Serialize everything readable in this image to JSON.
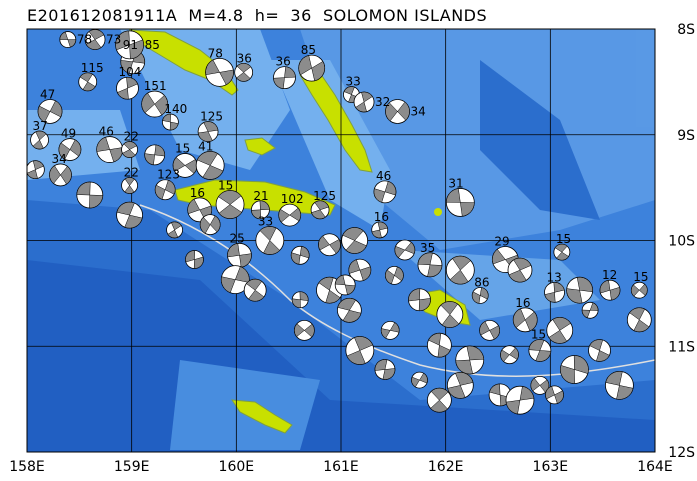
{
  "title": "E201612081911A  M=4.8  h=  36  SOLOMON ISLANDS",
  "map": {
    "lon_range": [
      158,
      164
    ],
    "lat_range": [
      -8,
      -12
    ],
    "lon_ticks": [
      "158E",
      "159E",
      "160E",
      "161E",
      "162E",
      "163E",
      "164E"
    ],
    "lat_ticks": [
      "8S",
      "9S",
      "10S",
      "11S",
      "12S"
    ],
    "colors": {
      "ocean": "#3d82dc",
      "shallow": "#7ab6f0",
      "deep": "#1e5cc0",
      "land": "#c8e000",
      "land_high": "#7fa040",
      "compressional": "#8c8c8c",
      "dilatational": "#ffffff",
      "trench": "#e0e0e0"
    }
  },
  "events": [
    [
      158.39,
      -8.1,
      "78"
    ],
    [
      158.65,
      -8.1,
      "73"
    ],
    [
      159.01,
      -8.31,
      "91"
    ],
    [
      158.98,
      -8.15,
      "85"
    ],
    [
      158.58,
      -8.5,
      "115"
    ],
    [
      158.96,
      -8.56,
      "104"
    ],
    [
      159.22,
      -8.71,
      "151"
    ],
    [
      159.37,
      -8.88,
      "140"
    ],
    [
      159.73,
      -8.97,
      "125"
    ],
    [
      158.22,
      -8.78,
      "47"
    ],
    [
      159.84,
      -8.41,
      "78"
    ],
    [
      160.07,
      -8.41,
      "36"
    ],
    [
      160.46,
      -8.46,
      "36"
    ],
    [
      160.72,
      -8.37,
      "85"
    ],
    [
      161.1,
      -8.62,
      "33"
    ],
    [
      161.22,
      -8.69,
      "32"
    ],
    [
      161.54,
      -8.78,
      "34"
    ],
    [
      162.14,
      -9.64,
      "31"
    ],
    [
      160.8,
      -9.71,
      "125"
    ],
    [
      161.42,
      -9.54,
      "46"
    ],
    [
      162.57,
      -10.18,
      "29"
    ],
    [
      163.11,
      -10.11,
      "15"
    ],
    [
      163.04,
      -10.49,
      "13"
    ],
    [
      162.76,
      -10.75,
      "16"
    ],
    [
      163.66,
      -11.37,
      ""
    ],
    [
      158.12,
      -9.05,
      "37"
    ],
    [
      158.41,
      -9.14,
      "49"
    ],
    [
      158.79,
      -9.14,
      "46"
    ],
    [
      158.98,
      -9.14,
      "22"
    ],
    [
      159.22,
      -9.19,
      ""
    ],
    [
      159.51,
      -9.29,
      "15"
    ],
    [
      159.75,
      -9.29,
      "41"
    ],
    [
      158.08,
      -9.33,
      ""
    ],
    [
      158.32,
      -9.38,
      "34"
    ],
    [
      158.6,
      -9.57,
      ""
    ],
    [
      158.98,
      -9.48,
      "22"
    ],
    [
      159.32,
      -9.52,
      "123"
    ],
    [
      159.65,
      -9.71,
      "16"
    ],
    [
      159.94,
      -9.66,
      "15"
    ],
    [
      160.23,
      -9.71,
      "21"
    ],
    [
      160.51,
      -9.76,
      "102"
    ],
    [
      158.98,
      -9.76,
      ""
    ],
    [
      159.41,
      -9.9,
      ""
    ],
    [
      159.75,
      -9.85,
      ""
    ],
    [
      160.03,
      -10.14,
      "25"
    ],
    [
      160.32,
      -10.0,
      "33"
    ],
    [
      160.61,
      -10.14,
      ""
    ],
    [
      160.89,
      -10.04,
      ""
    ],
    [
      161.13,
      -10.0,
      ""
    ],
    [
      161.37,
      -9.9,
      "16"
    ],
    [
      161.61,
      -10.09,
      ""
    ],
    [
      161.85,
      -10.23,
      "35"
    ],
    [
      162.14,
      -10.28,
      ""
    ],
    [
      161.51,
      -10.33,
      ""
    ],
    [
      161.18,
      -10.28,
      ""
    ],
    [
      160.89,
      -10.47,
      ""
    ],
    [
      160.61,
      -10.56,
      ""
    ],
    [
      160.65,
      -10.85,
      ""
    ],
    [
      161.08,
      -10.66,
      ""
    ],
    [
      161.18,
      -11.04,
      ""
    ],
    [
      161.47,
      -10.85,
      ""
    ],
    [
      161.75,
      -10.56,
      ""
    ],
    [
      162.04,
      -10.7,
      ""
    ],
    [
      162.33,
      -10.52,
      "86"
    ],
    [
      162.42,
      -10.85,
      ""
    ],
    [
      161.94,
      -10.99,
      ""
    ],
    [
      162.23,
      -11.13,
      ""
    ],
    [
      162.61,
      -11.08,
      ""
    ],
    [
      162.9,
      -11.04,
      "15"
    ],
    [
      163.09,
      -10.85,
      ""
    ],
    [
      163.38,
      -10.66,
      ""
    ],
    [
      163.57,
      -10.47,
      "12"
    ],
    [
      163.85,
      -10.75,
      ""
    ],
    [
      163.23,
      -11.22,
      ""
    ],
    [
      162.9,
      -11.37,
      ""
    ],
    [
      162.52,
      -11.46,
      ""
    ],
    [
      162.14,
      -11.37,
      ""
    ],
    [
      161.75,
      -11.32,
      ""
    ],
    [
      161.42,
      -11.22,
      ""
    ],
    [
      161.94,
      -11.51,
      ""
    ],
    [
      162.71,
      -11.51,
      ""
    ],
    [
      163.04,
      -11.46,
      ""
    ],
    [
      163.47,
      -11.04,
      ""
    ],
    [
      163.28,
      -10.47,
      ""
    ],
    [
      163.85,
      -10.47,
      "15"
    ],
    [
      161.04,
      -10.42,
      ""
    ],
    [
      162.71,
      -10.28,
      ""
    ],
    [
      159.99,
      -10.37,
      ""
    ],
    [
      159.6,
      -10.18,
      ""
    ],
    [
      160.18,
      -10.47,
      ""
    ]
  ]
}
